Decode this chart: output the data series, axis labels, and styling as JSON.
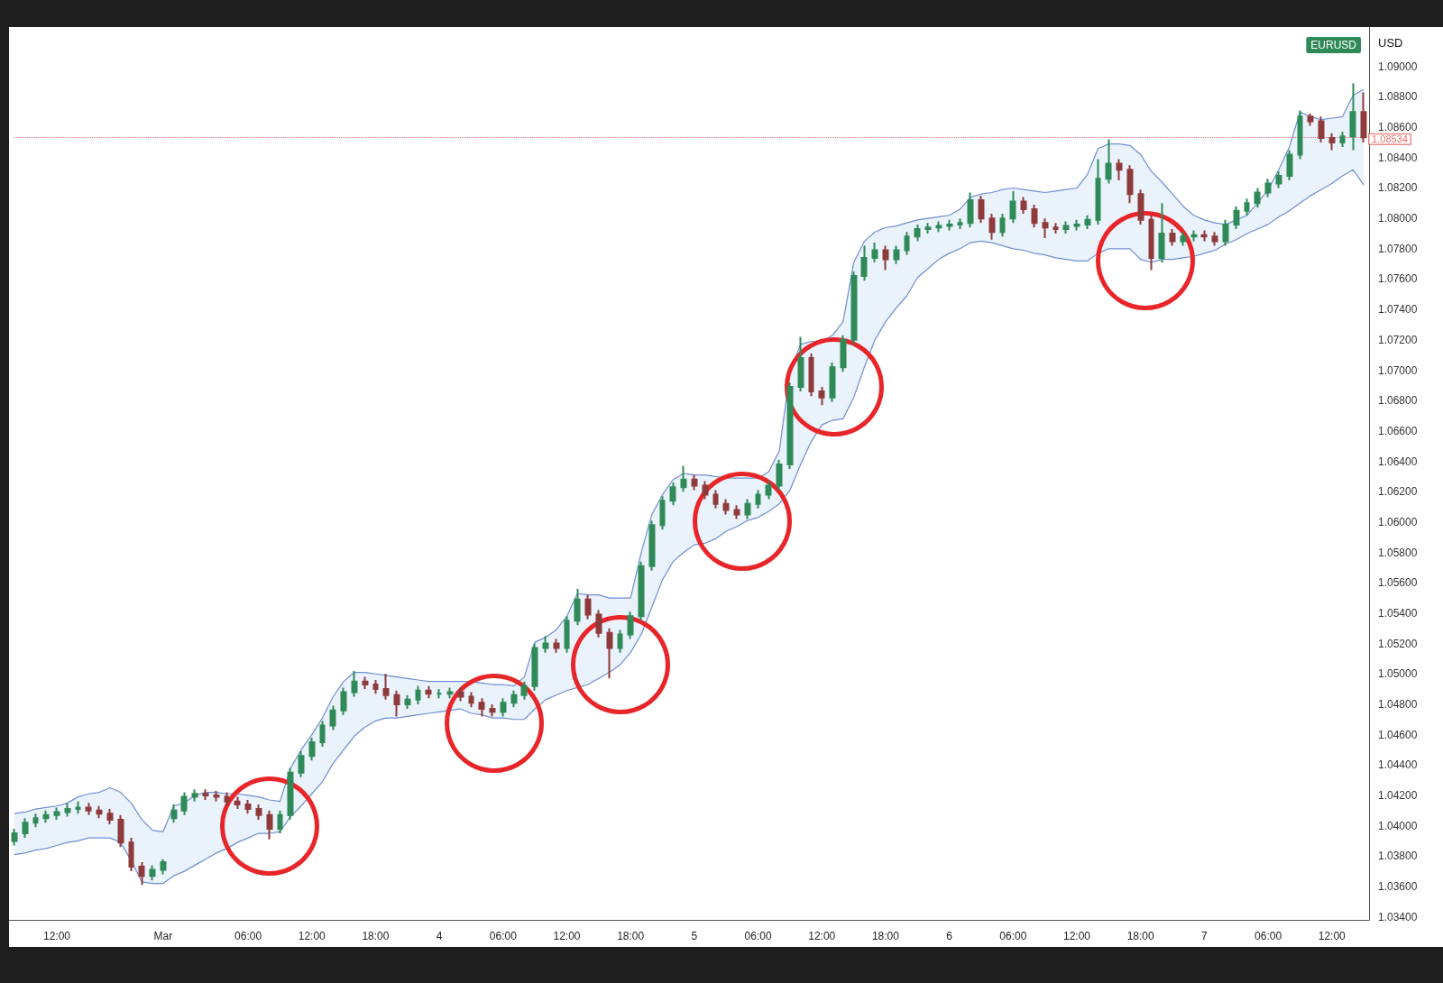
{
  "chart_data": {
    "type": "candlestick",
    "ylabel": "USD",
    "legend": "top right",
    "marker": "none",
    "categories": [
      null,
      null,
      null,
      null,
      "12:00",
      null,
      null,
      null,
      null,
      null,
      null,
      null,
      null,
      null,
      "Mar",
      null,
      null,
      null,
      null,
      null,
      null,
      null,
      "06:00",
      null,
      null,
      null,
      null,
      null,
      "12:00",
      null,
      null,
      null,
      null,
      null,
      "18:00",
      null,
      null,
      null,
      null,
      null,
      "4",
      null,
      null,
      null,
      null,
      null,
      "06:00",
      null,
      null,
      null,
      null,
      null,
      "12:00",
      null,
      null,
      null,
      null,
      null,
      "18:00",
      null,
      null,
      null,
      null,
      null,
      "5",
      null,
      null,
      null,
      null,
      null,
      "06:00",
      null,
      null,
      null,
      null,
      null,
      "12:00",
      null,
      null,
      null,
      null,
      null,
      "18:00",
      null,
      null,
      null,
      null,
      null,
      "6",
      null,
      null,
      null,
      null,
      null,
      "06:00",
      null,
      null,
      null,
      null,
      null,
      "12:00",
      null,
      null,
      null,
      null,
      null,
      "18:00",
      null,
      null,
      null,
      null,
      null,
      "7",
      null,
      null,
      null,
      null,
      null,
      "06:00",
      null,
      null,
      null,
      null,
      null,
      "12:00",
      null,
      null,
      null
    ],
    "series": [
      {
        "type": "candlestick",
        "name": "EURUSD",
        "color": "#2f8a57",
        "colors": [
          "#2f8a57",
          "#2f8a57",
          "#2f8a57",
          "#2f8a57",
          "#2f8a57",
          "#2f8a57",
          "#2f8a57",
          "#8e3b3b",
          "#8e3b3b",
          "#8e3b3b",
          "#8e3b3b",
          "#8e3b3b",
          "#8e3b3b",
          "#2f8a57",
          "#2f8a57",
          "#2f8a57",
          "#2f8a57",
          "#2f8a57",
          "#8e3b3b",
          "#8e3b3b",
          "#8e3b3b",
          "#8e3b3b",
          "#8e3b3b",
          "#8e3b3b",
          "#8e3b3b",
          "#2f8a57",
          "#2f8a57",
          "#2f8a57",
          "#2f8a57",
          "#2f8a57",
          "#2f8a57",
          "#2f8a57",
          "#2f8a57",
          "#8e3b3b",
          "#8e3b3b",
          "#8e3b3b",
          "#8e3b3b",
          "#2f8a57",
          "#2f8a57",
          "#8e3b3b",
          "#2f8a57",
          "#2f8a57",
          "#8e3b3b",
          "#8e3b3b",
          "#8e3b3b",
          "#8e3b3b",
          "#2f8a57",
          "#2f8a57",
          "#2f8a57",
          "#2f8a57",
          "#2f8a57",
          "#8e3b3b",
          "#2f8a57",
          "#2f8a57",
          "#8e3b3b",
          "#8e3b3b",
          "#8e3b3b",
          "#2f8a57",
          "#2f8a57",
          "#2f8a57",
          "#2f8a57",
          "#2f8a57",
          "#2f8a57",
          "#2f8a57",
          "#8e3b3b",
          "#8e3b3b",
          "#8e3b3b",
          "#8e3b3b",
          "#8e3b3b",
          "#2f8a57",
          "#2f8a57",
          "#2f8a57",
          "#2f8a57",
          "#2f8a57",
          "#2f8a57",
          "#8e3b3b",
          "#8e3b3b",
          "#2f8a57",
          "#2f8a57",
          "#2f8a57",
          "#2f8a57",
          "#2f8a57",
          "#8e3b3b",
          "#2f8a57",
          "#2f8a57",
          "#2f8a57",
          "#2f8a57",
          "#2f8a57",
          "#2f8a57",
          "#2f8a57",
          "#2f8a57",
          "#8e3b3b",
          "#8e3b3b",
          "#2f8a57",
          "#2f8a57",
          "#8e3b3b",
          "#8e3b3b",
          "#8e3b3b",
          "#8e3b3b",
          "#2f8a57",
          "#2f8a57",
          "#2f8a57",
          "#2f8a57",
          "#2f8a57",
          "#8e3b3b",
          "#8e3b3b",
          "#8e3b3b",
          "#8e3b3b",
          "#2f8a57",
          "#8e3b3b",
          "#2f8a57",
          "#2f8a57",
          "#8e3b3b",
          "#8e3b3b",
          "#2f8a57",
          "#2f8a57",
          "#2f8a57",
          "#2f8a57",
          "#2f8a57",
          "#2f8a57",
          "#2f8a57",
          "#2f8a57",
          "#8e3b3b",
          "#8e3b3b",
          "#8e3b3b",
          "#2f8a57",
          "#2f8a57",
          "#8e3b3b"
        ],
        "ohlc": [
          [
            1.039,
            1.0398,
            1.0387,
            1.0395
          ],
          [
            1.0395,
            1.0405,
            1.0392,
            1.0402
          ],
          [
            1.0402,
            1.0408,
            1.0399,
            1.0405
          ],
          [
            1.0405,
            1.041,
            1.0402,
            1.0407
          ],
          [
            1.0407,
            1.0412,
            1.0404,
            1.0409
          ],
          [
            1.0409,
            1.0415,
            1.0406,
            1.0411
          ],
          [
            1.0411,
            1.0416,
            1.0408,
            1.0412
          ],
          [
            1.0412,
            1.0415,
            1.0407,
            1.041
          ],
          [
            1.041,
            1.0413,
            1.0405,
            1.0408
          ],
          [
            1.0408,
            1.0411,
            1.0401,
            1.0404
          ],
          [
            1.0404,
            1.0407,
            1.0386,
            1.0389
          ],
          [
            1.0389,
            1.0392,
            1.037,
            1.0373
          ],
          [
            1.0373,
            1.0376,
            1.0361,
            1.0367
          ],
          [
            1.0367,
            1.0374,
            1.0364,
            1.0371
          ],
          [
            1.0371,
            1.0378,
            1.0368,
            1.0376
          ],
          [
            1.0405,
            1.0414,
            1.0402,
            1.041
          ],
          [
            1.041,
            1.0422,
            1.0407,
            1.0419
          ],
          [
            1.0419,
            1.0424,
            1.0416,
            1.0421
          ],
          [
            1.0421,
            1.0424,
            1.0417,
            1.042
          ],
          [
            1.042,
            1.0423,
            1.0416,
            1.0419
          ],
          [
            1.0419,
            1.0422,
            1.0413,
            1.0416
          ],
          [
            1.0416,
            1.0419,
            1.0411,
            1.0414
          ],
          [
            1.0414,
            1.0417,
            1.0408,
            1.0411
          ],
          [
            1.0411,
            1.0414,
            1.0404,
            1.0407
          ],
          [
            1.0407,
            1.041,
            1.0391,
            1.0398
          ],
          [
            1.0398,
            1.041,
            1.0395,
            1.0407
          ],
          [
            1.0407,
            1.0438,
            1.0404,
            1.0435
          ],
          [
            1.0435,
            1.0449,
            1.0432,
            1.0446
          ],
          [
            1.0446,
            1.0458,
            1.0443,
            1.0455
          ],
          [
            1.0455,
            1.0469,
            1.0452,
            1.0466
          ],
          [
            1.0466,
            1.0479,
            1.0463,
            1.0476
          ],
          [
            1.0476,
            1.0491,
            1.0473,
            1.0488
          ],
          [
            1.0488,
            1.0502,
            1.0485,
            1.0495
          ],
          [
            1.0495,
            1.0498,
            1.049,
            1.0493
          ],
          [
            1.0493,
            1.0496,
            1.0487,
            1.049
          ],
          [
            1.049,
            1.05,
            1.0483,
            1.0486
          ],
          [
            1.0486,
            1.0489,
            1.0472,
            1.048
          ],
          [
            1.048,
            1.0486,
            1.0477,
            1.0483
          ],
          [
            1.0483,
            1.0492,
            1.048,
            1.0489
          ],
          [
            1.0489,
            1.0492,
            1.0484,
            1.0487
          ],
          [
            1.0487,
            1.049,
            1.0484,
            1.0487
          ],
          [
            1.0487,
            1.0491,
            1.0484,
            1.0488
          ],
          [
            1.0488,
            1.0491,
            1.0482,
            1.0485
          ],
          [
            1.0485,
            1.0488,
            1.0478,
            1.0481
          ],
          [
            1.0481,
            1.0484,
            1.0472,
            1.0477
          ],
          [
            1.0477,
            1.048,
            1.0472,
            1.0475
          ],
          [
            1.0475,
            1.0484,
            1.0472,
            1.0481
          ],
          [
            1.0481,
            1.0489,
            1.0478,
            1.0486
          ],
          [
            1.0486,
            1.0495,
            1.0483,
            1.0492
          ],
          [
            1.0492,
            1.052,
            1.0489,
            1.0517
          ],
          [
            1.0517,
            1.0525,
            1.0514,
            1.052
          ],
          [
            1.052,
            1.0523,
            1.0514,
            1.0517
          ],
          [
            1.0517,
            1.0538,
            1.0514,
            1.0535
          ],
          [
            1.0535,
            1.0556,
            1.0532,
            1.0549
          ],
          [
            1.0549,
            1.0552,
            1.0536,
            1.0539
          ],
          [
            1.0539,
            1.0542,
            1.0524,
            1.0527
          ],
          [
            1.0527,
            1.053,
            1.0497,
            1.0517
          ],
          [
            1.0517,
            1.0529,
            1.0514,
            1.0526
          ],
          [
            1.0526,
            1.0541,
            1.0523,
            1.0538
          ],
          [
            1.0538,
            1.0574,
            1.0535,
            1.0571
          ],
          [
            1.0571,
            1.0601,
            1.0568,
            1.0598
          ],
          [
            1.0598,
            1.0617,
            1.0595,
            1.0614
          ],
          [
            1.0614,
            1.0626,
            1.0611,
            1.0623
          ],
          [
            1.0623,
            1.0637,
            1.062,
            1.0628
          ],
          [
            1.0628,
            1.0631,
            1.0621,
            1.0624
          ],
          [
            1.0624,
            1.0627,
            1.0615,
            1.0618
          ],
          [
            1.0618,
            1.0621,
            1.0609,
            1.0612
          ],
          [
            1.0612,
            1.0615,
            1.0605,
            1.0608
          ],
          [
            1.0608,
            1.0611,
            1.0602,
            1.0605
          ],
          [
            1.0605,
            1.0615,
            1.0602,
            1.0612
          ],
          [
            1.0612,
            1.0621,
            1.0609,
            1.0618
          ],
          [
            1.0618,
            1.0627,
            1.0615,
            1.0624
          ],
          [
            1.0624,
            1.0641,
            1.0621,
            1.0638
          ],
          [
            1.0638,
            1.0692,
            1.0635,
            1.0689
          ],
          [
            1.0689,
            1.0722,
            1.0686,
            1.0708
          ],
          [
            1.0708,
            1.0711,
            1.0683,
            1.0686
          ],
          [
            1.0686,
            1.0689,
            1.0677,
            1.0682
          ],
          [
            1.0682,
            1.0705,
            1.0679,
            1.0702
          ],
          [
            1.0702,
            1.0723,
            1.0699,
            1.072
          ],
          [
            1.072,
            1.0765,
            1.0717,
            1.0762
          ],
          [
            1.0762,
            1.0782,
            1.0759,
            1.0774
          ],
          [
            1.0774,
            1.0784,
            1.0771,
            1.0779
          ],
          [
            1.0779,
            1.0782,
            1.0766,
            1.0773
          ],
          [
            1.0773,
            1.0782,
            1.077,
            1.0779
          ],
          [
            1.0779,
            1.0791,
            1.0776,
            1.0788
          ],
          [
            1.0788,
            1.0796,
            1.0785,
            1.0793
          ],
          [
            1.0793,
            1.0797,
            1.079,
            1.0794
          ],
          [
            1.0794,
            1.0798,
            1.0791,
            1.0795
          ],
          [
            1.0795,
            1.0799,
            1.0792,
            1.0796
          ],
          [
            1.0796,
            1.08,
            1.0793,
            1.0797
          ],
          [
            1.0797,
            1.0817,
            1.0794,
            1.0812
          ],
          [
            1.0812,
            1.0815,
            1.0797,
            1.08
          ],
          [
            1.08,
            1.0803,
            1.0786,
            1.0791
          ],
          [
            1.0791,
            1.0803,
            1.0788,
            1.08
          ],
          [
            1.08,
            1.0818,
            1.0797,
            1.0811
          ],
          [
            1.0811,
            1.0814,
            1.0803,
            1.0806
          ],
          [
            1.0806,
            1.0809,
            1.0794,
            1.0797
          ],
          [
            1.0797,
            1.08,
            1.0787,
            1.0794
          ],
          [
            1.0794,
            1.0797,
            1.079,
            1.0793
          ],
          [
            1.0793,
            1.0798,
            1.079,
            1.0795
          ],
          [
            1.0795,
            1.0799,
            1.0792,
            1.0796
          ],
          [
            1.0796,
            1.0802,
            1.0793,
            1.0799
          ],
          [
            1.0799,
            1.0839,
            1.0796,
            1.0826
          ],
          [
            1.0826,
            1.0852,
            1.0823,
            1.0836
          ],
          [
            1.0836,
            1.0839,
            1.0825,
            1.0832
          ],
          [
            1.0832,
            1.0835,
            1.081,
            1.0816
          ],
          [
            1.0816,
            1.0819,
            1.0796,
            1.0799
          ],
          [
            1.0799,
            1.0802,
            1.0766,
            1.0774
          ],
          [
            1.0774,
            1.081,
            1.0771,
            1.079
          ],
          [
            1.079,
            1.0793,
            1.0782,
            1.0785
          ],
          [
            1.0785,
            1.0791,
            1.0782,
            1.0788
          ],
          [
            1.0788,
            1.0792,
            1.0785,
            1.0789
          ],
          [
            1.0789,
            1.0792,
            1.0785,
            1.0788
          ],
          [
            1.0788,
            1.0791,
            1.0782,
            1.0785
          ],
          [
            1.0785,
            1.0799,
            1.0782,
            1.0796
          ],
          [
            1.0796,
            1.0808,
            1.0793,
            1.0805
          ],
          [
            1.0805,
            1.0813,
            1.0802,
            1.081
          ],
          [
            1.081,
            1.082,
            1.0807,
            1.0817
          ],
          [
            1.0817,
            1.0826,
            1.0814,
            1.0823
          ],
          [
            1.0823,
            1.0831,
            1.082,
            1.0828
          ],
          [
            1.0828,
            1.0845,
            1.0825,
            1.0842
          ],
          [
            1.0842,
            1.0871,
            1.0839,
            1.0867
          ],
          [
            1.0867,
            1.0869,
            1.0861,
            1.0864
          ],
          [
            1.0864,
            1.0867,
            1.085,
            1.0853
          ],
          [
            1.0853,
            1.0856,
            1.0845,
            1.085
          ],
          [
            1.085,
            1.0857,
            1.0847,
            1.0854
          ],
          [
            1.0854,
            1.0889,
            1.0845,
            1.087
          ],
          [
            1.087,
            1.0883,
            1.085,
            1.08534
          ]
        ]
      },
      {
        "type": "area",
        "color": "#6f8fd0",
        "values": [
          1.0408,
          1.0409,
          1.0411,
          1.0412,
          1.0413,
          1.0415,
          1.0419,
          1.0421,
          1.0422,
          1.0425,
          1.0422,
          1.0415,
          1.0404,
          1.0397,
          1.0396,
          1.0413,
          1.0415,
          1.042,
          1.0422,
          1.0422,
          1.0421,
          1.0421,
          1.042,
          1.0419,
          1.0417,
          1.0416,
          1.0438,
          1.045,
          1.046,
          1.0471,
          1.0485,
          1.0495,
          1.0501,
          1.0501,
          1.05,
          1.0499,
          1.0498,
          1.0497,
          1.0496,
          1.0495,
          1.0495,
          1.0495,
          1.0495,
          1.0495,
          1.0494,
          1.0493,
          1.0493,
          1.0492,
          1.0498,
          1.0521,
          1.0524,
          1.0529,
          1.0538,
          1.0553,
          1.0552,
          1.0552,
          1.055,
          1.055,
          1.055,
          1.058,
          1.0605,
          1.0618,
          1.0628,
          1.0632,
          1.0631,
          1.0631,
          1.063,
          1.0629,
          1.0629,
          1.0629,
          1.0629,
          1.0633,
          1.0647,
          1.0699,
          1.0717,
          1.0719,
          1.0719,
          1.0723,
          1.0732,
          1.0771,
          1.0785,
          1.0791,
          1.0794,
          1.0795,
          1.0797,
          1.0799,
          1.08,
          1.0801,
          1.0802,
          1.0806,
          1.0814,
          1.0816,
          1.0817,
          1.0819,
          1.082,
          1.0819,
          1.0818,
          1.0817,
          1.0818,
          1.0819,
          1.082,
          1.0829,
          1.0846,
          1.0849,
          1.0849,
          1.0848,
          1.0842,
          1.0831,
          1.0824,
          1.0816,
          1.0808,
          1.0802,
          1.0799,
          1.0797,
          1.0796,
          1.0799,
          1.0802,
          1.081,
          1.0819,
          1.0832,
          1.0847,
          1.087,
          1.0867,
          1.0865,
          1.0866,
          1.0867,
          1.0881,
          1.0885
        ]
      },
      {
        "type": "area",
        "color": "#6f8fd0",
        "values": [
          1.0381,
          1.0382,
          1.0384,
          1.0385,
          1.0387,
          1.0389,
          1.039,
          1.0392,
          1.0392,
          1.0392,
          1.0389,
          1.0377,
          1.0363,
          1.0362,
          1.0362,
          1.0367,
          1.037,
          1.0374,
          1.0378,
          1.0382,
          1.0385,
          1.0389,
          1.0392,
          1.0395,
          1.0395,
          1.0396,
          1.0406,
          1.0413,
          1.0421,
          1.0429,
          1.0441,
          1.045,
          1.0459,
          1.0465,
          1.0469,
          1.0471,
          1.0471,
          1.0472,
          1.0473,
          1.0474,
          1.0475,
          1.0476,
          1.0477,
          1.0474,
          1.0473,
          1.0471,
          1.0471,
          1.047,
          1.047,
          1.0477,
          1.0483,
          1.0486,
          1.0489,
          1.0491,
          1.0493,
          1.0497,
          1.0501,
          1.0506,
          1.0514,
          1.0526,
          1.0544,
          1.0562,
          1.0574,
          1.058,
          1.0585,
          1.0586,
          1.0589,
          1.0594,
          1.0597,
          1.0601,
          1.0603,
          1.0607,
          1.0612,
          1.0621,
          1.0638,
          1.0653,
          1.0664,
          1.0667,
          1.0668,
          1.0682,
          1.0702,
          1.072,
          1.0732,
          1.0741,
          1.0749,
          1.0761,
          1.0767,
          1.0773,
          1.0777,
          1.078,
          1.0784,
          1.0785,
          1.0784,
          1.0782,
          1.078,
          1.0779,
          1.0777,
          1.0776,
          1.0774,
          1.0773,
          1.0772,
          1.0772,
          1.0777,
          1.078,
          1.078,
          1.078,
          1.0773,
          1.0771,
          1.0773,
          1.0773,
          1.0774,
          1.0775,
          1.0777,
          1.0779,
          1.0783,
          1.0786,
          1.079,
          1.0793,
          1.0796,
          1.0801,
          1.0805,
          1.081,
          1.0815,
          1.0819,
          1.0823,
          1.0828,
          1.0832,
          1.0822
        ]
      }
    ],
    "ylim": [
      1.0338,
      1.0926
    ],
    "yticks": [
      {
        "value": 1.034,
        "label": "1.03400"
      },
      {
        "value": 1.036,
        "label": "1.03600"
      },
      {
        "value": 1.038,
        "label": "1.03800"
      },
      {
        "value": 1.04,
        "label": "1.04000"
      },
      {
        "value": 1.042,
        "label": "1.04200"
      },
      {
        "value": 1.044,
        "label": "1.04400"
      },
      {
        "value": 1.046,
        "label": "1.04600"
      },
      {
        "value": 1.048,
        "label": "1.04800"
      },
      {
        "value": 1.05,
        "label": "1.05000"
      },
      {
        "value": 1.052,
        "label": "1.05200"
      },
      {
        "value": 1.054,
        "label": "1.05400"
      },
      {
        "value": 1.056,
        "label": "1.05600"
      },
      {
        "value": 1.058,
        "label": "1.05800"
      },
      {
        "value": 1.06,
        "label": "1.06000"
      },
      {
        "value": 1.062,
        "label": "1.06200"
      },
      {
        "value": 1.064,
        "label": "1.06400"
      },
      {
        "value": 1.066,
        "label": "1.06600"
      },
      {
        "value": 1.068,
        "label": "1.06800"
      },
      {
        "value": 1.07,
        "label": "1.07000"
      },
      {
        "value": 1.072,
        "label": "1.07200"
      },
      {
        "value": 1.074,
        "label": "1.07400"
      },
      {
        "value": 1.076,
        "label": "1.07600"
      },
      {
        "value": 1.078,
        "label": "1.07800"
      },
      {
        "value": 1.08,
        "label": "1.08000"
      },
      {
        "value": 1.082,
        "label": "1.08200"
      },
      {
        "value": 1.084,
        "label": "1.08400"
      },
      {
        "value": 1.086,
        "label": "1.08600"
      },
      {
        "value": 1.088,
        "label": "1.08800"
      },
      {
        "value": 1.09,
        "label": "1.09000"
      }
    ],
    "ref_lines": [
      {
        "axis": "y",
        "value": 1.08534,
        "label": "1.08534",
        "color": "#e04a4a",
        "line_style": "dotted"
      }
    ]
  }
}
